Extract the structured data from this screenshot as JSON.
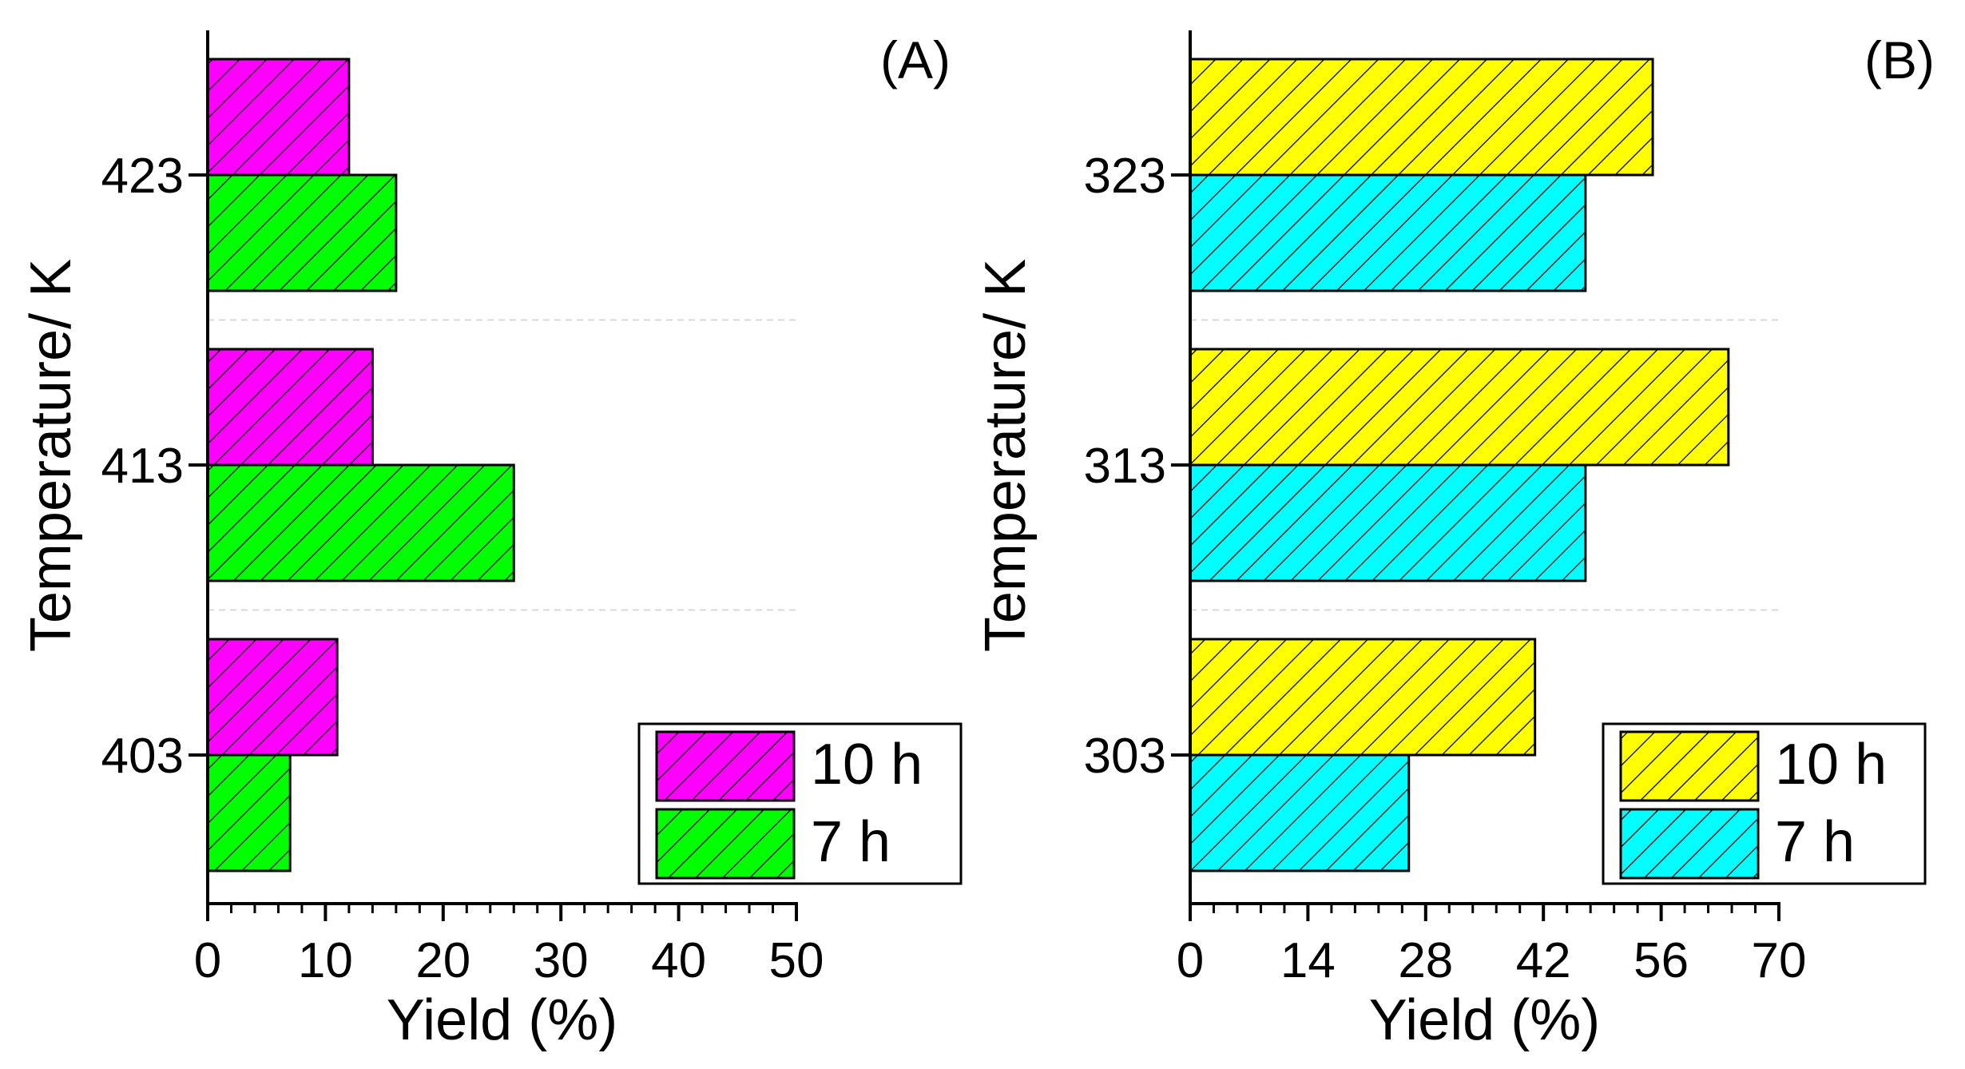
{
  "colors": {
    "magenta": "#ff00ff",
    "green": "#00ff00",
    "yellow": "#ffff00",
    "cyan": "#00ffff",
    "axis": "#000000",
    "grid": "#d9d9d9"
  },
  "chart_data": [
    {
      "type": "bar",
      "orientation": "horizontal",
      "panel_label": "(A)",
      "title": "",
      "xlabel": "Yield (%)",
      "ylabel": "Temperature/ K",
      "categories": [
        "403",
        "413",
        "423"
      ],
      "xlim": [
        0,
        50
      ],
      "xticks": [
        0,
        10,
        20,
        30,
        40,
        50
      ],
      "xticklabels": [
        "0",
        "10",
        "20",
        "30",
        "40",
        "50"
      ],
      "grid": "horizontal dashed separators between categories",
      "legend_position": "bottom-right",
      "series": [
        {
          "name": "10 h",
          "color": "#ff00ff",
          "hatch": "diagonal",
          "values": [
            11,
            14,
            12
          ]
        },
        {
          "name": "7 h",
          "color": "#00ff00",
          "hatch": "diagonal",
          "values": [
            7,
            26,
            16
          ]
        }
      ]
    },
    {
      "type": "bar",
      "orientation": "horizontal",
      "panel_label": "(B)",
      "title": "",
      "xlabel": "Yield (%)",
      "ylabel": "Temperature/ K",
      "categories": [
        "303",
        "313",
        "323"
      ],
      "xlim": [
        0,
        70
      ],
      "xticks": [
        0,
        14,
        28,
        42,
        56,
        70
      ],
      "xticklabels": [
        "0",
        "14",
        "28",
        "42",
        "56",
        "70"
      ],
      "grid": "horizontal dashed separators between categories",
      "legend_position": "bottom-right",
      "series": [
        {
          "name": "10 h",
          "color": "#ffff00",
          "hatch": "diagonal",
          "values": [
            41,
            64,
            55
          ]
        },
        {
          "name": "7 h",
          "color": "#00ffff",
          "hatch": "diagonal",
          "values": [
            26,
            47,
            47
          ]
        }
      ]
    }
  ]
}
